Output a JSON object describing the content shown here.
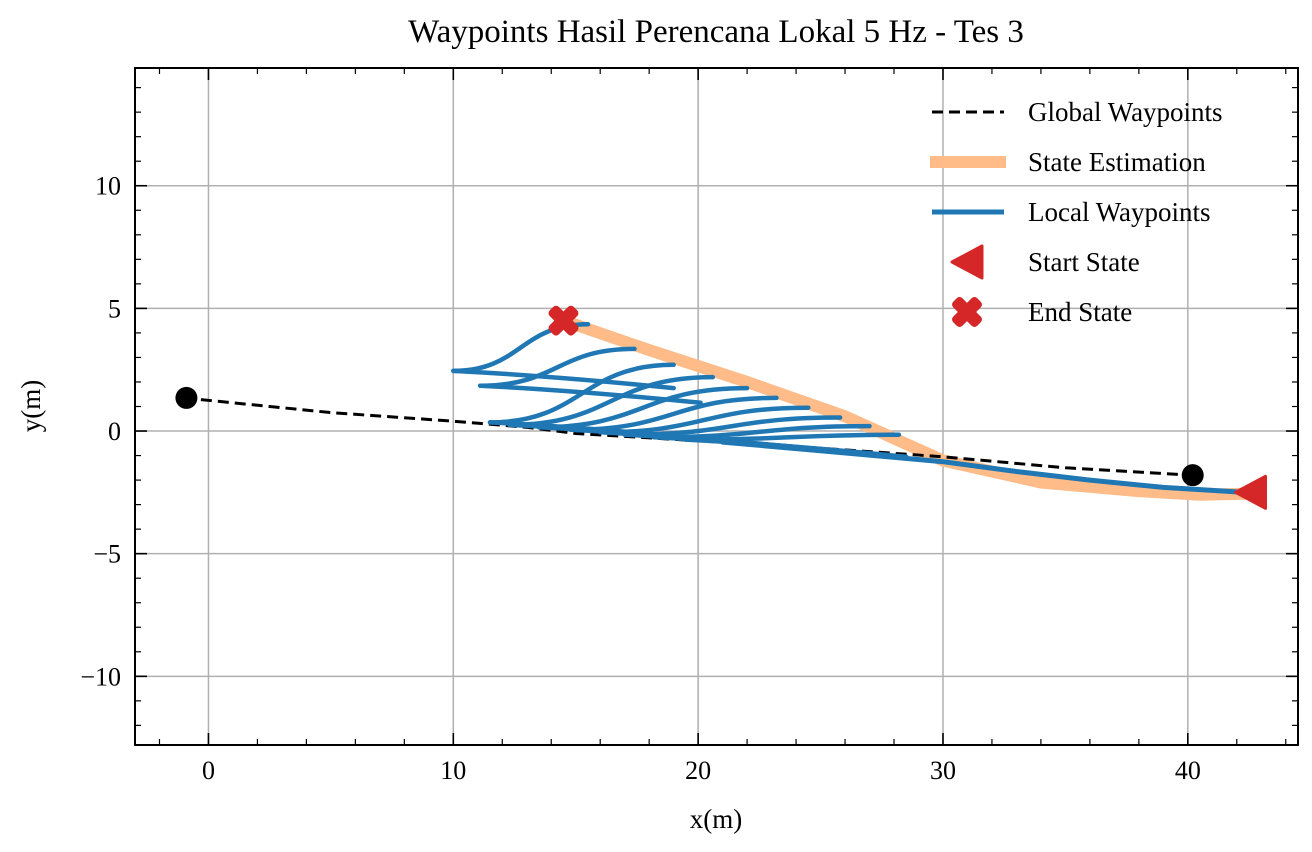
{
  "chart_data": {
    "type": "line",
    "title": "Waypoints Hasil Perencana Lokal 5 Hz - Tes 3",
    "xlabel": "x(m)",
    "ylabel": "y(m)",
    "xlim": [
      -3,
      44.5
    ],
    "ylim": [
      -12.8,
      14.8
    ],
    "xticks": [
      0,
      10,
      20,
      30,
      40
    ],
    "yticks": [
      -10,
      -5,
      0,
      5,
      10
    ],
    "xtick_labels": [
      "0",
      "10",
      "20",
      "30",
      "40"
    ],
    "ytick_labels": [
      "−10",
      "−5",
      "0",
      "5",
      "10"
    ],
    "grid": true,
    "legend_position": "top-right",
    "series": [
      {
        "name": "Global Waypoints",
        "style": "dashed",
        "color": "#000000",
        "x": [
          -1,
          5,
          10,
          13,
          15,
          20,
          25,
          30,
          35,
          40.2
        ],
        "y": [
          1.35,
          0.75,
          0.4,
          0.15,
          -0.1,
          -0.4,
          -0.7,
          -1.05,
          -1.5,
          -1.8
        ]
      },
      {
        "name": "State Estimation",
        "style": "thick",
        "color": "#ffbb88",
        "x": [
          14.5,
          18,
          22,
          26,
          30,
          34,
          38,
          40.5,
          42.5
        ],
        "y": [
          4.5,
          3.3,
          2.0,
          0.6,
          -1.2,
          -2.1,
          -2.45,
          -2.6,
          -2.55
        ]
      },
      {
        "name": "Local Waypoints",
        "style": "solid",
        "color": "#1f77b4",
        "curves": [
          {
            "start": [
              10.0,
              2.45
            ],
            "end": [
              15.5,
              4.35
            ]
          },
          {
            "start": [
              11.1,
              1.85
            ],
            "end": [
              17.4,
              3.35
            ]
          },
          {
            "start": [
              11.5,
              0.35
            ],
            "end": [
              19.0,
              2.7
            ]
          },
          {
            "start": [
              12.3,
              0.25
            ],
            "end": [
              20.6,
              2.2
            ]
          },
          {
            "start": [
              13.5,
              0.15
            ],
            "end": [
              22.0,
              1.75
            ]
          },
          {
            "start": [
              14.8,
              0.05
            ],
            "end": [
              23.2,
              1.35
            ]
          },
          {
            "start": [
              16.0,
              -0.05
            ],
            "end": [
              24.5,
              0.95
            ]
          },
          {
            "start": [
              17.0,
              -0.15
            ],
            "end": [
              25.8,
              0.55
            ]
          },
          {
            "start": [
              18.2,
              -0.25
            ],
            "end": [
              27.0,
              0.2
            ]
          },
          {
            "start": [
              19.5,
              -0.35
            ],
            "end": [
              28.2,
              -0.15
            ]
          }
        ],
        "x": [
          30,
          33,
          36,
          39,
          41.5,
          42.3
        ],
        "y": [
          -1.25,
          -1.65,
          -2.0,
          -2.3,
          -2.45,
          -2.5
        ]
      }
    ],
    "markers": [
      {
        "name": "Start State",
        "shape": "triangle-left",
        "color": "#d62728",
        "x": 42.6,
        "y": -2.5
      },
      {
        "name": "End State",
        "shape": "X",
        "color": "#d62728",
        "x": 14.5,
        "y": 4.5
      },
      {
        "shape": "circle",
        "color": "#000000",
        "x": -0.9,
        "y": 1.35
      },
      {
        "shape": "circle",
        "color": "#000000",
        "x": 40.2,
        "y": -1.8
      }
    ]
  }
}
